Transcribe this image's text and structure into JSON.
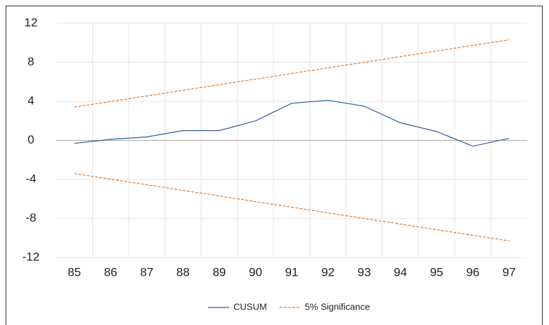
{
  "chart_data": {
    "type": "line",
    "categories": [
      "85",
      "86",
      "87",
      "88",
      "89",
      "90",
      "91",
      "92",
      "93",
      "94",
      "95",
      "96",
      "97"
    ],
    "series": [
      {
        "name": "CUSUM",
        "color": "#2e5f9e",
        "dash": false,
        "values": [
          -0.3,
          0.1,
          0.35,
          1.0,
          1.0,
          2.0,
          3.8,
          4.1,
          3.5,
          1.8,
          0.9,
          -0.6,
          0.2
        ]
      },
      {
        "name": "5% Significance",
        "color": "#e07b2a",
        "dash": true,
        "values": [
          3.4,
          3.98,
          4.55,
          5.13,
          5.7,
          6.28,
          6.85,
          7.43,
          8.0,
          8.58,
          9.15,
          9.73,
          10.3
        ]
      },
      {
        "color": "#e07b2a",
        "dash": true,
        "values": [
          -3.4,
          -3.98,
          -4.55,
          -5.13,
          -5.7,
          -6.28,
          -6.85,
          -7.43,
          -8.0,
          -8.58,
          -9.15,
          -9.73,
          -10.3
        ]
      }
    ],
    "ylim": [
      -12,
      12
    ],
    "yticks": [
      -12,
      -8,
      -4,
      0,
      4,
      8,
      12
    ],
    "grid": true,
    "legend": "bottom"
  }
}
